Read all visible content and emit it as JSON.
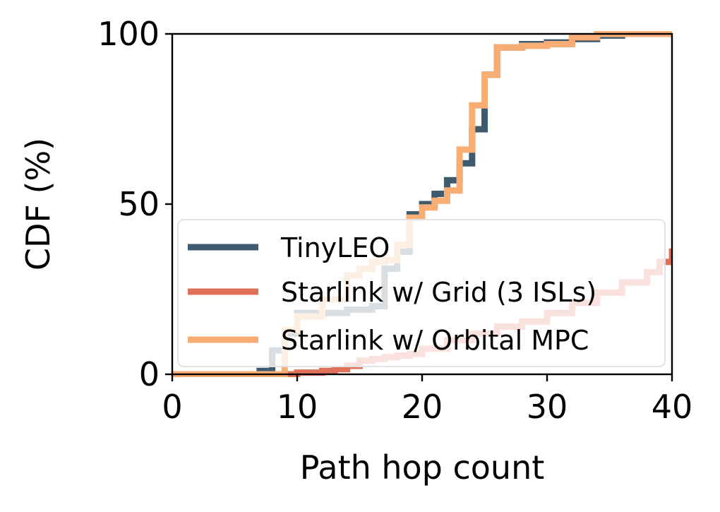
{
  "chart_data": {
    "type": "line",
    "step": true,
    "title": "",
    "xlabel": "Path hop count",
    "ylabel": "CDF (%)",
    "xlim": [
      0,
      40
    ],
    "ylim": [
      0,
      100
    ],
    "xticks": [
      0,
      10,
      20,
      30,
      40
    ],
    "yticks": [
      0,
      50,
      100
    ],
    "grid": false,
    "legend_position": "lower-left",
    "series": [
      {
        "name": "TinyLEO",
        "color": "#3e5a6e",
        "shade_color": "#7f95a2",
        "x": [
          0,
          7,
          8,
          9,
          10,
          12,
          14,
          16,
          17,
          18,
          19,
          20,
          21,
          22,
          23,
          24,
          25,
          26,
          28,
          30,
          32,
          34,
          36,
          40
        ],
        "y": [
          0,
          1,
          7,
          12,
          18,
          18,
          19,
          20,
          31,
          36,
          47,
          50,
          53,
          57,
          62,
          72,
          88,
          96,
          97,
          97.5,
          98.5,
          99.5,
          100,
          100
        ]
      },
      {
        "name": "Starlink w/ Grid (3 ISLs)",
        "color": "#e07058",
        "shade_color": "#ec9c88",
        "x": [
          0,
          8,
          10,
          12,
          13,
          14,
          15,
          16,
          17,
          18,
          19,
          20,
          22,
          24,
          26,
          28,
          30,
          32,
          34,
          36,
          38,
          39,
          40
        ],
        "y": [
          0,
          0,
          0.5,
          1,
          1.5,
          2.5,
          4,
          4.5,
          5,
          5.5,
          6,
          7.5,
          10,
          12,
          14,
          15.5,
          18,
          21,
          24,
          27,
          30,
          33,
          37
        ]
      },
      {
        "name": "Starlink w/ Orbital MPC",
        "color": "#f8ad74",
        "shade_color": "#f8ad74",
        "x": [
          0,
          8,
          9,
          10,
          12,
          14,
          15,
          16,
          17,
          18,
          19,
          20,
          21,
          22,
          23,
          24,
          25,
          26,
          28,
          30,
          32,
          34,
          40
        ],
        "y": [
          0,
          0,
          13,
          17,
          22,
          29,
          31,
          33,
          33.5,
          38,
          46,
          49,
          51,
          54,
          66,
          79,
          88,
          96,
          96.5,
          97,
          99,
          100,
          100
        ]
      }
    ]
  }
}
